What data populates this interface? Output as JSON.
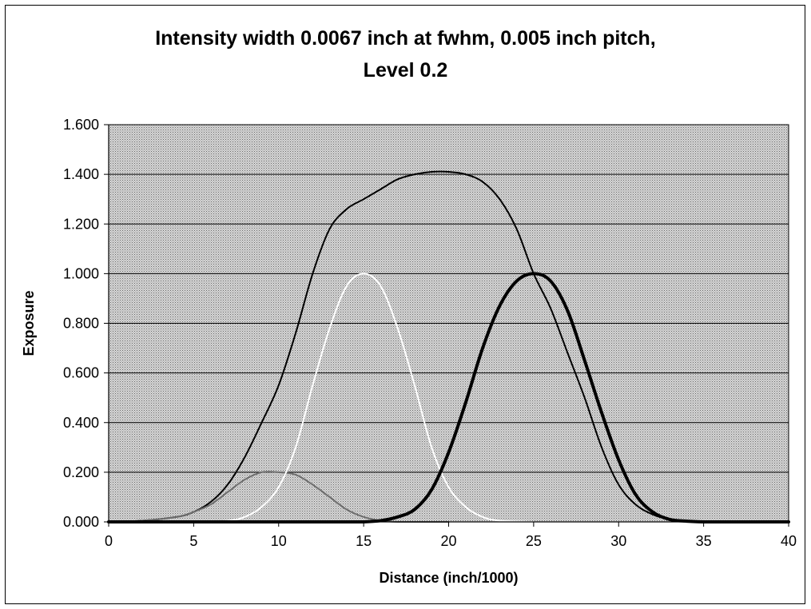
{
  "chart_data": {
    "type": "line",
    "title_lines": [
      "Intensity width 0.0067 inch at fwhm, 0.005 inch pitch,",
      "Level 0.2"
    ],
    "xlabel": "Distance (inch/1000)",
    "ylabel": "Exposure",
    "xlim": [
      0,
      40
    ],
    "ylim": [
      0,
      1.6
    ],
    "x_ticks": [
      "0",
      "5",
      "10",
      "15",
      "20",
      "25",
      "30",
      "35",
      "40"
    ],
    "y_ticks": [
      "0.000",
      "0.200",
      "0.400",
      "0.600",
      "0.800",
      "1.000",
      "1.200",
      "1.400",
      "1.600"
    ],
    "grid": "horizontal",
    "legend": "none",
    "plot_background": "#bdbdbd",
    "series": [
      {
        "color": "#000000",
        "style": "thin",
        "x": [
          0,
          2,
          4,
          5,
          6,
          7,
          8,
          9,
          10,
          11,
          12,
          13,
          14,
          15,
          16,
          17,
          18,
          19,
          20,
          21,
          22,
          23,
          24,
          25,
          26,
          27,
          28,
          29,
          30,
          31,
          32,
          33,
          34,
          35,
          36,
          37,
          38,
          39,
          40
        ],
        "y": [
          0.0,
          0.005,
          0.02,
          0.04,
          0.08,
          0.15,
          0.26,
          0.4,
          0.55,
          0.76,
          1.0,
          1.18,
          1.26,
          1.3,
          1.34,
          1.38,
          1.4,
          1.41,
          1.41,
          1.4,
          1.37,
          1.3,
          1.18,
          1.0,
          0.86,
          0.68,
          0.5,
          0.3,
          0.15,
          0.07,
          0.03,
          0.01,
          0.004,
          0.0,
          0.0,
          0.0,
          0.0,
          0.0,
          0.0
        ]
      },
      {
        "color": "#6e6e6e",
        "style": "thin",
        "x": [
          0,
          2,
          4,
          5,
          6,
          7,
          8,
          9,
          10,
          11,
          12,
          13,
          14,
          15,
          16,
          17,
          18,
          20
        ],
        "y": [
          0.0,
          0.005,
          0.02,
          0.04,
          0.07,
          0.12,
          0.17,
          0.2,
          0.2,
          0.19,
          0.15,
          0.1,
          0.05,
          0.02,
          0.005,
          0.0,
          0.0,
          0.0
        ]
      },
      {
        "color": "#ffffff",
        "style": "thin",
        "x": [
          5,
          7,
          8,
          9,
          10,
          11,
          12,
          13,
          14,
          15,
          16,
          17,
          18,
          19,
          20,
          21,
          22,
          23,
          25
        ],
        "y": [
          0.0,
          0.005,
          0.02,
          0.06,
          0.14,
          0.3,
          0.55,
          0.78,
          0.95,
          1.0,
          0.95,
          0.78,
          0.55,
          0.3,
          0.14,
          0.06,
          0.02,
          0.005,
          0.0
        ]
      },
      {
        "color": "#000000",
        "style": "thick",
        "x": [
          0,
          5,
          10,
          14,
          15,
          16,
          17,
          18,
          19,
          20,
          21,
          22,
          23,
          24,
          25,
          26,
          27,
          28,
          29,
          30,
          31,
          32,
          33,
          34,
          35,
          36,
          37,
          38,
          39,
          40
        ],
        "y": [
          0.0,
          0.0,
          0.0,
          0.0,
          0.0,
          0.005,
          0.02,
          0.05,
          0.13,
          0.28,
          0.48,
          0.7,
          0.87,
          0.97,
          1.0,
          0.97,
          0.85,
          0.65,
          0.44,
          0.25,
          0.11,
          0.04,
          0.01,
          0.003,
          0.0,
          0.0,
          0.0,
          0.0,
          0.0,
          0.0
        ]
      }
    ]
  }
}
